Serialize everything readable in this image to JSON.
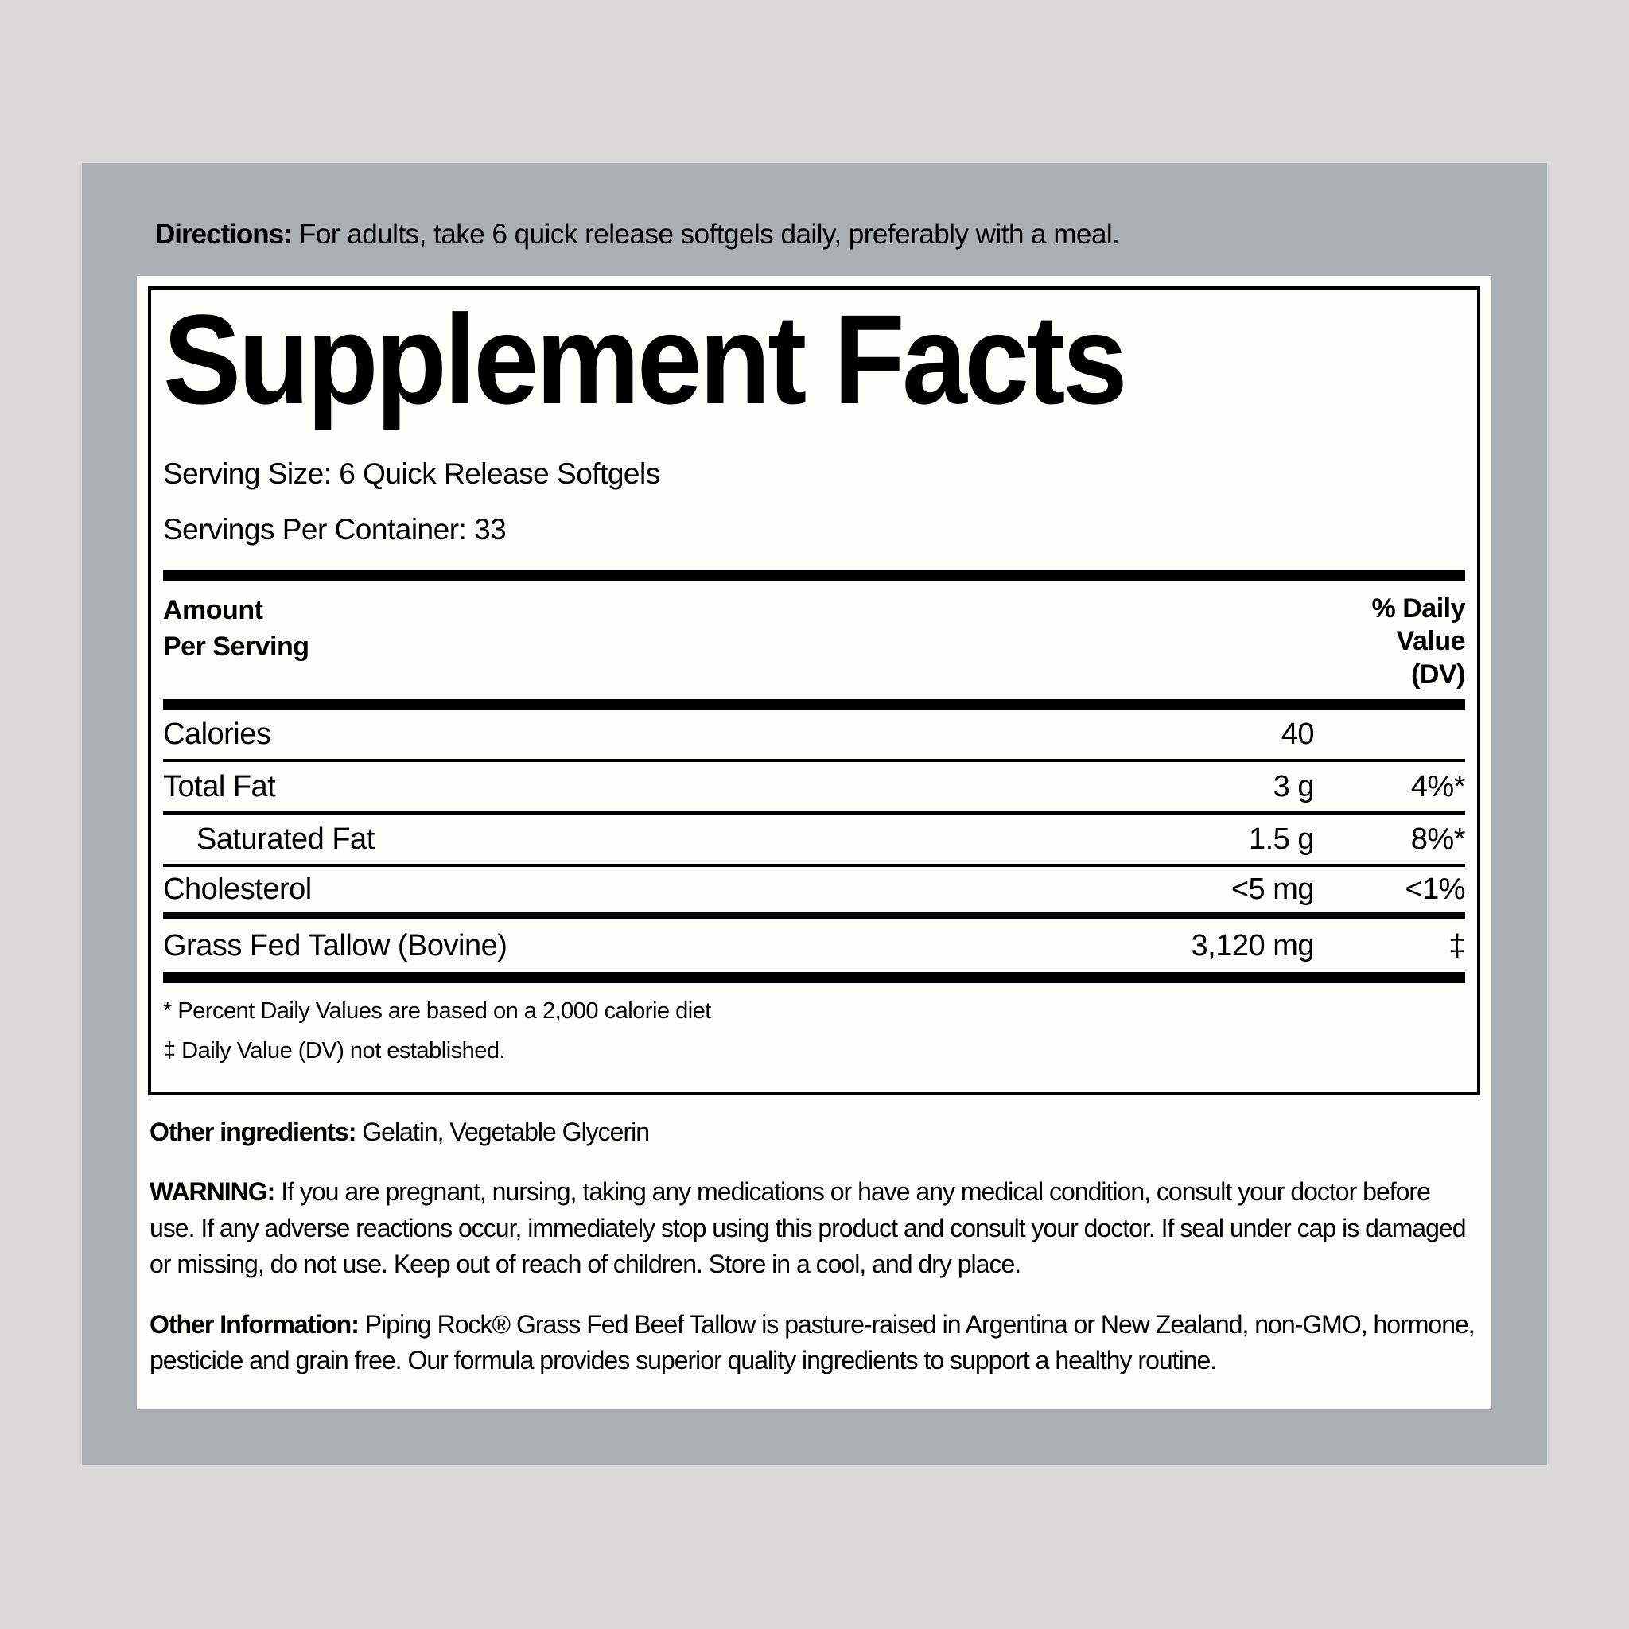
{
  "colors": {
    "page-bg": "#dbd9da",
    "panel-bg": "#a9afb2",
    "label-bg": "#fcfdf8",
    "ink": "#000000"
  },
  "directions": {
    "label": "Directions:",
    "text": "For adults, take 6 quick release softgels daily, preferably with a meal."
  },
  "facts": {
    "title": "Supplement Facts",
    "serving_size": "Serving Size: 6 Quick Release Softgels",
    "servings_per_container": "Servings Per Container: 33",
    "amount_header": "Amount\nPer Serving",
    "dv_header": "% Daily\nValue\n(DV)",
    "rows": [
      {
        "name": "Calories",
        "amount": "40",
        "dv": ""
      },
      {
        "name": "Total Fat",
        "amount": "3 g",
        "dv": "4%*"
      },
      {
        "name": "Saturated Fat",
        "amount": "1.5 g",
        "dv": "8%*"
      },
      {
        "name": "Cholesterol",
        "amount": "<5 mg",
        "dv": "<1%"
      },
      {
        "name": "Grass Fed Tallow (Bovine)",
        "amount": "3,120 mg",
        "dv": "‡"
      }
    ],
    "footnotes": [
      "* Percent Daily Values are based on a 2,000 calorie diet",
      "‡ Daily Value (DV) not established."
    ]
  },
  "sections": {
    "other_ingredients": {
      "label": "Other ingredients:",
      "text": "Gelatin, Vegetable Glycerin"
    },
    "warning": {
      "label": "WARNING:",
      "text": "If you are pregnant, nursing, taking any medications or have any medical condition, consult your doctor before use. If any adverse reactions occur, immediately stop using this product and consult your doctor. If seal under cap is damaged or missing, do not use. Keep out of reach of children. Store in a cool, and dry place."
    },
    "other_information": {
      "label": "Other Information:",
      "text": "Piping Rock® Grass Fed Beef Tallow is pasture-raised in Argentina or New Zealand, non-GMO, hormone, pesticide and grain free. Our formula provides superior quality ingredients to support a healthy routine."
    }
  }
}
